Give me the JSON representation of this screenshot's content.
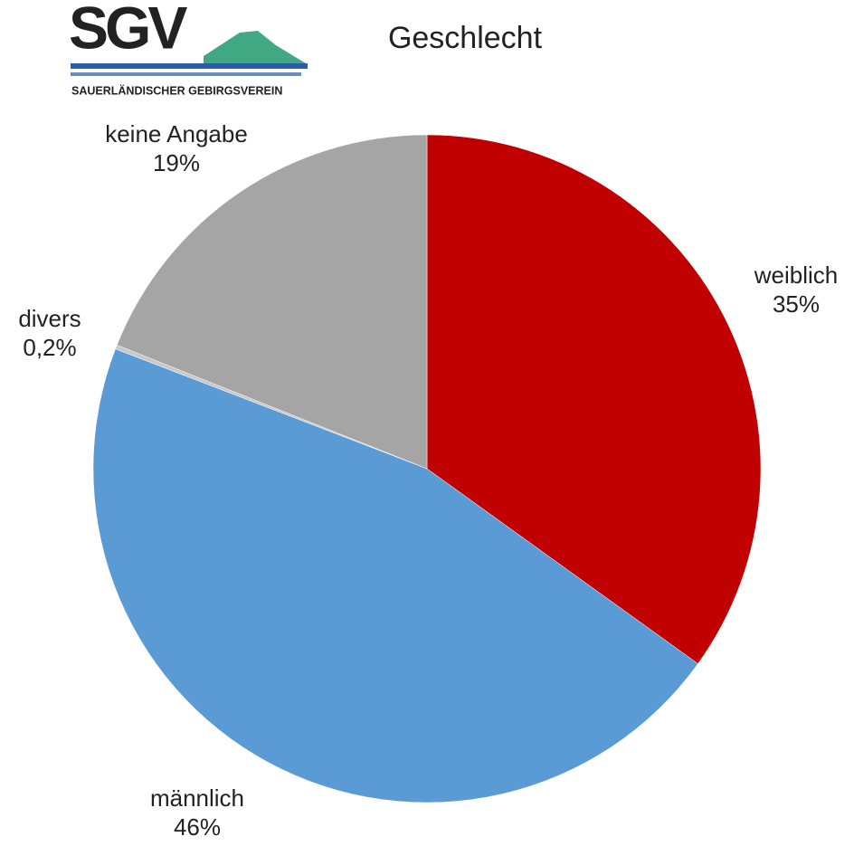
{
  "logo": {
    "text": "SGV",
    "subtitle": "SAUERLÄNDISCHER GEBIRGSVEREIN"
  },
  "chart_data": {
    "type": "pie",
    "title": "Geschlecht",
    "categories": [
      "weiblich",
      "männlich",
      "divers",
      "keine Angabe"
    ],
    "values": [
      35,
      46,
      0.2,
      19
    ],
    "value_labels": [
      "35%",
      "46%",
      "0,2%",
      "19%"
    ],
    "colors": [
      "#c00000",
      "#5b9bd5",
      "#c8c8c8",
      "#a5a5a5"
    ]
  }
}
